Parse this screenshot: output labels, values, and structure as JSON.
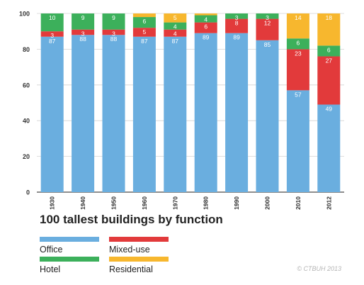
{
  "chart_data": {
    "type": "bar",
    "stacked": true,
    "title": "100 tallest buildings by function",
    "xlabel": "",
    "ylabel": "",
    "ylim": [
      0,
      100
    ],
    "yticks": [
      "0",
      "20",
      "40",
      "60",
      "80",
      "100"
    ],
    "grid": true,
    "legend_position": "bottom",
    "categories": [
      "1930",
      "1940",
      "1950",
      "1960",
      "1970",
      "1980",
      "1990",
      "2000",
      "2010",
      "2012"
    ],
    "series": [
      {
        "name": "Office",
        "color": "#6aaedf",
        "values": [
          87,
          88,
          88,
          87,
          87,
          89,
          89,
          85,
          57,
          49
        ],
        "labels": [
          "87",
          "88",
          "88",
          "87",
          "87",
          "89",
          "89",
          "85",
          "57",
          "49"
        ]
      },
      {
        "name": "Mixed-use",
        "color": "#e23a3b",
        "values": [
          3,
          3,
          3,
          5,
          4,
          6,
          8,
          12,
          23,
          27
        ],
        "labels": [
          "3",
          "3",
          "3",
          "5",
          "4",
          "6",
          "8",
          "12",
          "23",
          "27"
        ]
      },
      {
        "name": "Hotel",
        "color": "#3cb05b",
        "values": [
          10,
          9,
          9,
          6,
          4,
          4,
          3,
          3,
          6,
          6
        ],
        "labels": [
          "10",
          "9",
          "9",
          "6",
          "4",
          "4",
          "3",
          "3",
          "6",
          "6"
        ]
      },
      {
        "name": "Residential",
        "color": "#f7b72e",
        "values": [
          0,
          0,
          0,
          2,
          5,
          1,
          0,
          0,
          14,
          18
        ],
        "labels": [
          "",
          "",
          "",
          "",
          "5",
          "",
          "",
          "",
          "14",
          "18"
        ]
      }
    ]
  },
  "legend": {
    "items": [
      {
        "label": "Office",
        "color": "#6aaedf"
      },
      {
        "label": "Mixed-use",
        "color": "#e23a3b"
      },
      {
        "label": "Hotel",
        "color": "#3cb05b"
      },
      {
        "label": "Residential",
        "color": "#f7b72e"
      }
    ]
  },
  "copyright": "© CTBUH 2013"
}
